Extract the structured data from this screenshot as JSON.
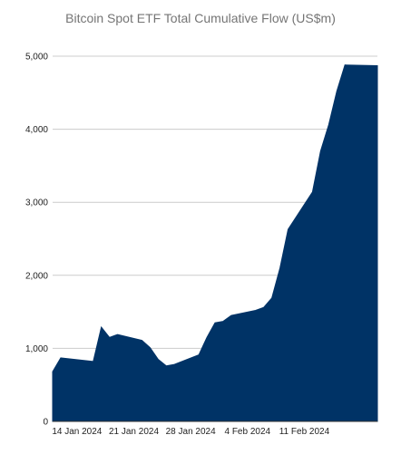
{
  "chart_data": {
    "type": "area",
    "title": "Bitcoin Spot ETF Total Cumulative Flow (US$m)",
    "xlabel": "",
    "ylabel": "",
    "ylim": [
      0,
      5000
    ],
    "yticks": [
      0,
      1000,
      2000,
      3000,
      4000,
      5000
    ],
    "ytick_labels": [
      "0",
      "1,000",
      "2,000",
      "3,000",
      "4,000",
      "5,000"
    ],
    "grid": true,
    "legend": "none",
    "fill_color": "#003366",
    "xlim": [
      "2024-01-11",
      "2024-02-20"
    ],
    "xticks": [
      "2024-01-14",
      "2024-01-21",
      "2024-01-28",
      "2024-02-04",
      "2024-02-11"
    ],
    "xtick_labels": [
      "14 Jan 2024",
      "21 Jan 2024",
      "28 Jan 2024",
      "4 Feb 2024",
      "11 Feb 2024"
    ],
    "series": [
      {
        "x": [
          "2024-01-11",
          "2024-01-12",
          "2024-01-16",
          "2024-01-17",
          "2024-01-18",
          "2024-01-19",
          "2024-01-22",
          "2024-01-23",
          "2024-01-24",
          "2024-01-25",
          "2024-01-26",
          "2024-01-29",
          "2024-01-30",
          "2024-01-31",
          "2024-02-01",
          "2024-02-02",
          "2024-02-05",
          "2024-02-06",
          "2024-02-07",
          "2024-02-08",
          "2024-02-09",
          "2024-02-12",
          "2024-02-13",
          "2024-02-14",
          "2024-02-15",
          "2024-02-16",
          "2024-02-20"
        ],
        "values": [
          680,
          870,
          820,
          1290,
          1150,
          1190,
          1110,
          1010,
          850,
          760,
          780,
          910,
          1150,
          1350,
          1370,
          1450,
          1520,
          1560,
          1690,
          2100,
          2630,
          3140,
          3700,
          4060,
          4520,
          4880,
          4870
        ]
      }
    ]
  }
}
